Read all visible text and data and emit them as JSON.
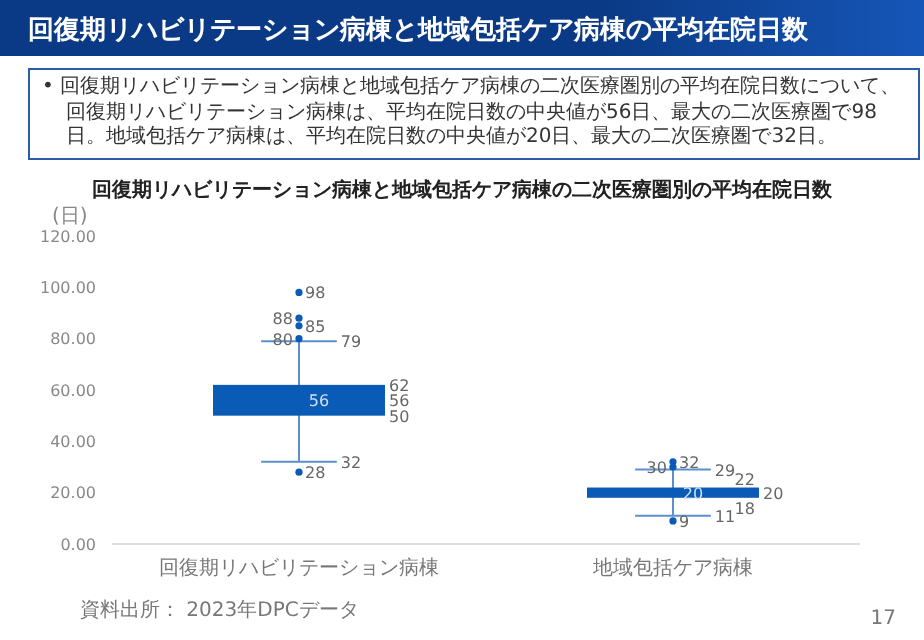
{
  "chart_data": {
    "type": "box",
    "title": "回復期リハビリテーション病棟と地域包括ケア病棟の二次医療圏別の平均在院日数",
    "ylabel": "(日)",
    "categories": [
      "回復期リハビリテーション病棟",
      "地域包括ケア病棟"
    ],
    "color": "#0a5bb5",
    "boxes": [
      {
        "low": 32,
        "q1": 50,
        "median": 56,
        "q3": 62,
        "high": 79,
        "mean": 56,
        "outliers": [
          28,
          80,
          85,
          88,
          98
        ]
      },
      {
        "low": 11,
        "q1": 18,
        "median": 20,
        "q3": 22,
        "high": 29,
        "mean": 20,
        "outliers": [
          9,
          30,
          32
        ]
      }
    ],
    "ylim": [
      0,
      120
    ],
    "yticks": [
      {
        "value": 0,
        "label": "0.00"
      },
      {
        "value": 20,
        "label": "20.00"
      },
      {
        "value": 40,
        "label": "40.00"
      },
      {
        "value": 60,
        "label": "60.00"
      },
      {
        "value": 80,
        "label": "80.00"
      },
      {
        "value": 100,
        "label": "100.00"
      },
      {
        "value": 120,
        "label": "120.00"
      }
    ],
    "grid": false,
    "legend": false,
    "annotations": [
      "回復期リハビリテーション病棟と地域包括ケア病棟の平均在院日数",
      "• 回復期リハビリテーション病棟と地域包括ケア病棟の二次医療圏別の平均在院日数について、回復期リハビリテーション病棟は、平均在院日数の中央値が56日、最大の二次医療圏で98日。地域包括ケア病棟は、平均在院日数の中央値が20日、最大の二次医療圏で32日。",
      "資料出所： 2023年DPCデータ",
      "17",
      "98",
      "88",
      "85",
      "80",
      "79",
      "62",
      "56",
      "56",
      "50",
      "32",
      "28",
      "32",
      "30",
      "29",
      "22",
      "20",
      "20",
      "18",
      "11",
      "9"
    ]
  }
}
